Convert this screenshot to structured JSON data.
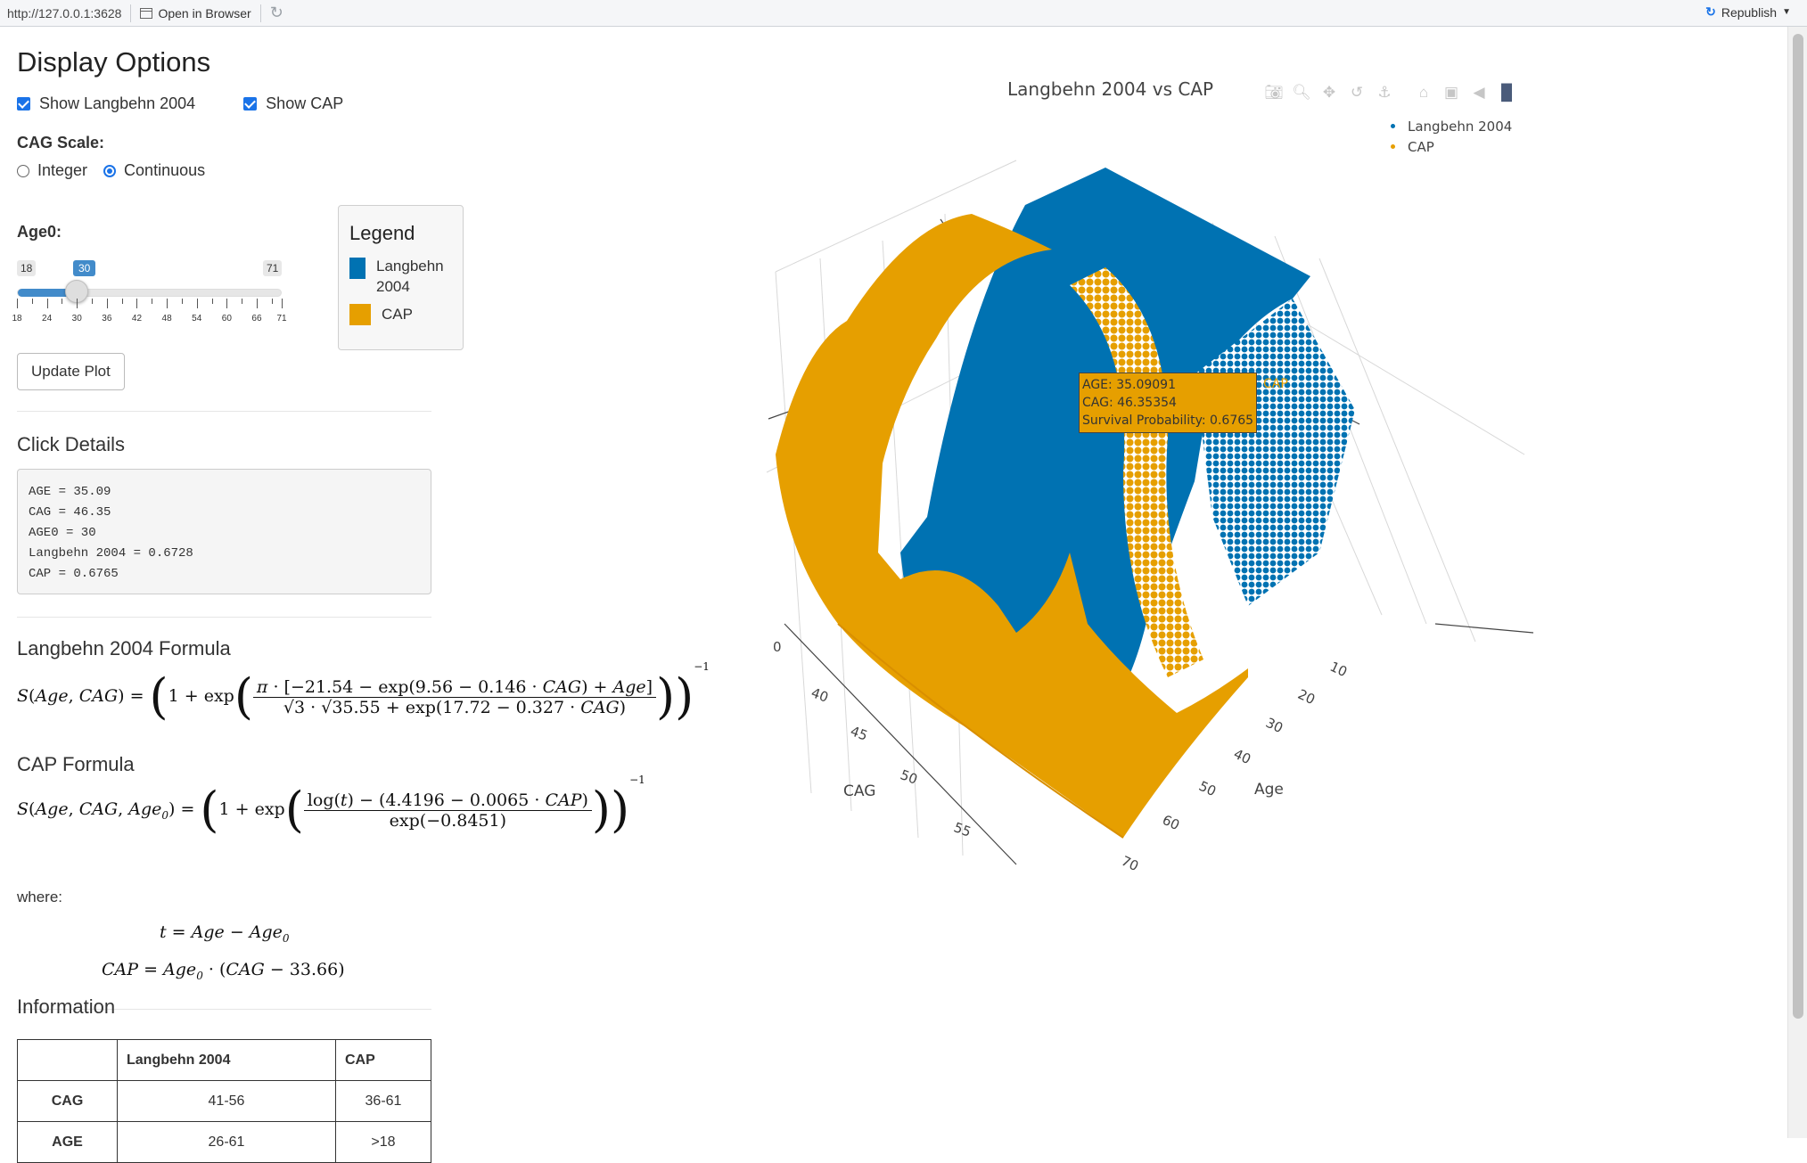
{
  "viewer": {
    "url": "http://127.0.0.1:3628",
    "open_in_browser": "Open in Browser",
    "republish": "Republish"
  },
  "sidebar": {
    "title": "Display Options",
    "checkbox_langbehn": "Show Langbehn 2004",
    "checkbox_cap": "Show CAP",
    "cag_scale_label": "CAG Scale:",
    "radio_integer": "Integer",
    "radio_continuous": "Continuous",
    "cag_scale_selected": "Continuous",
    "age0_label": "Age0:",
    "slider": {
      "min": 18,
      "max": 71,
      "value": 30,
      "min_label": "18",
      "max_label": "71",
      "value_label": "30",
      "tick_labels": [
        "18",
        "24",
        "30",
        "36",
        "42",
        "48",
        "54",
        "60",
        "66",
        "71"
      ]
    },
    "legend": {
      "title": "Legend",
      "item1": "Langbehn 2004",
      "item2": "CAP"
    },
    "update_button": "Update Plot"
  },
  "click_details": {
    "heading": "Click Details",
    "line1": "AGE = 35.09",
    "line2": "CAG = 46.35",
    "line3": "AGE0 = 30",
    "line4": "Langbehn 2004 = 0.6728",
    "line5": "CAP = 0.6765"
  },
  "formulas": {
    "langbehn_heading": "Langbehn 2004 Formula",
    "cap_heading": "CAP Formula",
    "where": "where:"
  },
  "information": {
    "heading": "Information",
    "columns": [
      "",
      "Langbehn 2004",
      "CAP"
    ],
    "rows": [
      {
        "label": "CAG",
        "langbehn": "41-56",
        "cap": "36-61"
      },
      {
        "label": "AGE",
        "langbehn": "26-61",
        "cap": ">18"
      }
    ]
  },
  "plot": {
    "title": "Langbehn 2004 vs CAP",
    "legend": [
      "Langbehn 2004",
      "CAP"
    ],
    "colors": {
      "langbehn": "#0072b2",
      "cap": "#e69f00"
    },
    "hover": {
      "line1": "AGE: 35.09091",
      "line2": "CAG: 46.35354",
      "line3": "Survival Probability: 0.6765",
      "trace": "CAP"
    },
    "axis_cag_label": "CAG",
    "axis_age_label": "Age",
    "cag_ticks": [
      "40",
      "45",
      "50",
      "55"
    ],
    "age_ticks": [
      "10",
      "20",
      "30",
      "40",
      "50",
      "60",
      "70"
    ],
    "z_ticks": [
      "0"
    ]
  }
}
